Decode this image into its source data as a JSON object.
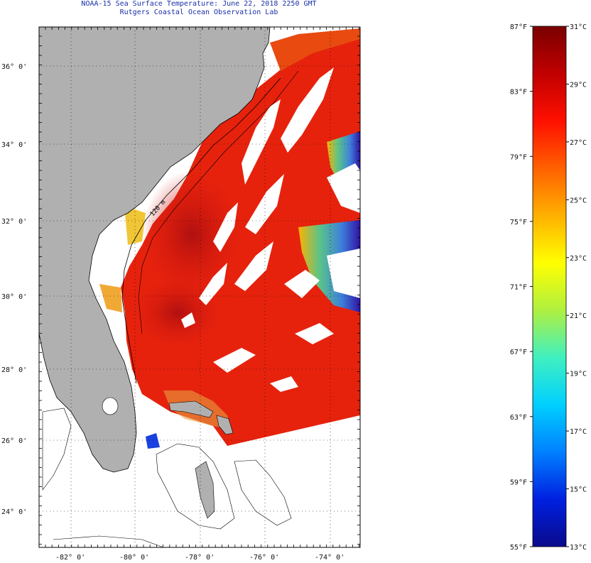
{
  "header": {
    "title": "NOAA-15 Sea Surface Temperature:  June 22, 2018 2250 GMT",
    "subtitle": "Rutgers Coastal Ocean Observation Lab"
  },
  "map": {
    "lat_labels": [
      "36° 0'",
      "34° 0'",
      "32° 0'",
      "30° 0'",
      "28° 0'",
      "26° 0'",
      "24° 0'"
    ],
    "lon_labels": [
      "-82° 0'",
      "-80° 0'",
      "-78° 0'",
      "-76° 0'",
      "-74° 0'"
    ],
    "contour_label": "120 m",
    "colors": {
      "land": "#b0b0b0",
      "ocean_warm": "#e8200c",
      "ocean_hot": "#c01010",
      "cloud": "#ffffff",
      "cool_edge": "#2060ff"
    }
  },
  "colorbar": {
    "fahrenheit": [
      "87°F",
      "83°F",
      "79°F",
      "75°F",
      "71°F",
      "67°F",
      "63°F",
      "59°F",
      "55°F"
    ],
    "celsius": [
      "31°C",
      "29°C",
      "27°C",
      "25°C",
      "23°C",
      "21°C",
      "19°C",
      "17°C",
      "15°C",
      "13°C"
    ],
    "min_c": 13,
    "max_c": 31,
    "gradient": [
      "#0a0a8c",
      "#0020e0",
      "#0080ff",
      "#00d0ff",
      "#40f0c0",
      "#b0f040",
      "#ffff00",
      "#ffb000",
      "#ff6000",
      "#ff1000",
      "#c00000",
      "#7a0000"
    ]
  }
}
